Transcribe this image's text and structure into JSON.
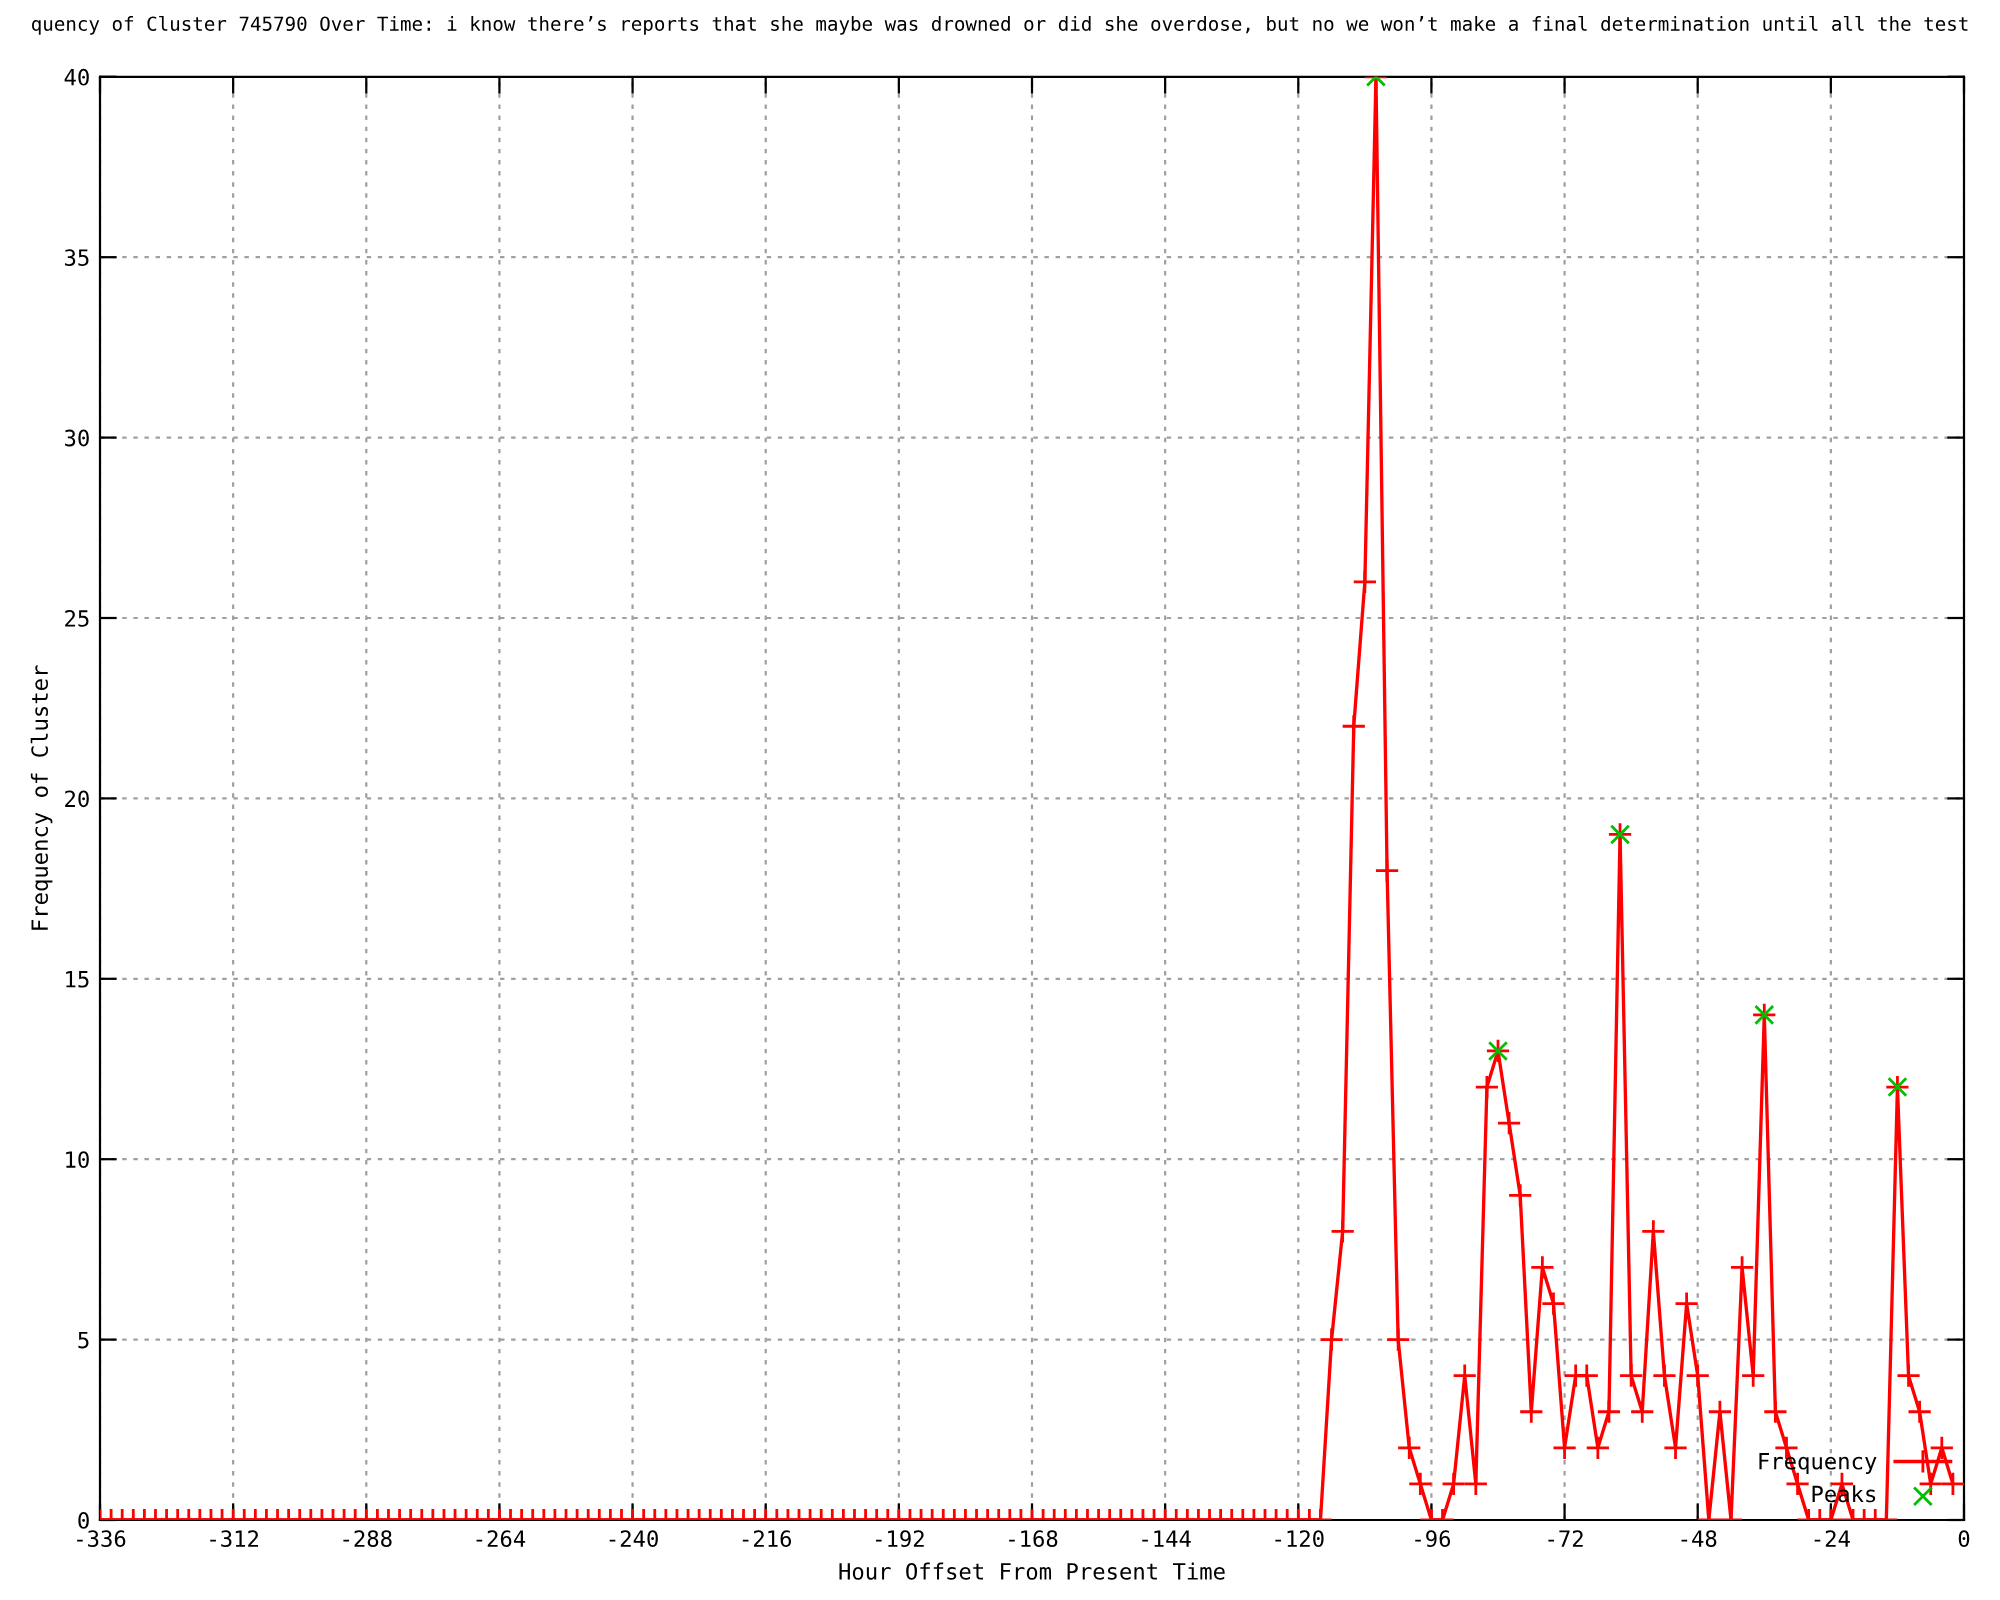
{
  "chart_data": {
    "type": "line",
    "title": "quency of Cluster 745790 Over Time: i know there’s reports that she maybe was drowned or did she overdose, but no we won’t make a final determination until all the test",
    "xlabel": "Hour Offset From Present Time",
    "ylabel": "Frequency of Cluster",
    "xlim": [
      -336,
      0
    ],
    "ylim": [
      0,
      40
    ],
    "xticks": [
      -336,
      -312,
      -288,
      -264,
      -240,
      -216,
      -192,
      -168,
      -144,
      -120,
      -96,
      -72,
      -48,
      -24,
      0
    ],
    "yticks": [
      0,
      5,
      10,
      15,
      20,
      25,
      30,
      35,
      40
    ],
    "grid": true,
    "legend": "bottom right",
    "series": [
      {
        "name": "Frequency",
        "color": "#ff0000",
        "marker": "cross",
        "line_style": "solid",
        "x": [
          -336,
          -334,
          -332,
          -330,
          -328,
          -326,
          -324,
          -322,
          -320,
          -318,
          -316,
          -314,
          -312,
          -310,
          -308,
          -306,
          -304,
          -302,
          -300,
          -298,
          -296,
          -294,
          -292,
          -290,
          -288,
          -286,
          -284,
          -282,
          -280,
          -278,
          -276,
          -274,
          -272,
          -270,
          -268,
          -266,
          -264,
          -262,
          -260,
          -258,
          -256,
          -254,
          -252,
          -250,
          -248,
          -246,
          -244,
          -242,
          -240,
          -238,
          -236,
          -234,
          -232,
          -230,
          -228,
          -226,
          -224,
          -222,
          -220,
          -218,
          -216,
          -214,
          -212,
          -210,
          -208,
          -206,
          -204,
          -202,
          -200,
          -198,
          -196,
          -194,
          -192,
          -190,
          -188,
          -186,
          -184,
          -182,
          -180,
          -178,
          -176,
          -174,
          -172,
          -170,
          -168,
          -166,
          -164,
          -162,
          -160,
          -158,
          -156,
          -154,
          -152,
          -150,
          -148,
          -146,
          -144,
          -142,
          -140,
          -138,
          -136,
          -134,
          -132,
          -130,
          -128,
          -126,
          -124,
          -122,
          -120,
          -118,
          -116,
          -114,
          -112,
          -110,
          -108,
          -106,
          -104,
          -102,
          -100,
          -98,
          -96,
          -94,
          -92,
          -90,
          -88,
          -86,
          -84,
          -82,
          -80,
          -78,
          -76,
          -74,
          -72,
          -70,
          -68,
          -66,
          -64,
          -62,
          -60,
          -58,
          -56,
          -54,
          -52,
          -50,
          -48,
          -46,
          -44,
          -42,
          -40,
          -38,
          -36,
          -34,
          -32,
          -30,
          -28,
          -26,
          -24,
          -22,
          -20,
          -18,
          -16,
          -14,
          -12,
          -10,
          -8,
          -6,
          -4,
          -2
        ],
        "values": [
          0,
          0,
          0,
          0,
          0,
          0,
          0,
          0,
          0,
          0,
          0,
          0,
          0,
          0,
          0,
          0,
          0,
          0,
          0,
          0,
          0,
          0,
          0,
          0,
          0,
          0,
          0,
          0,
          0,
          0,
          0,
          0,
          0,
          0,
          0,
          0,
          0,
          0,
          0,
          0,
          0,
          0,
          0,
          0,
          0,
          0,
          0,
          0,
          0,
          0,
          0,
          0,
          0,
          0,
          0,
          0,
          0,
          0,
          0,
          0,
          0,
          0,
          0,
          0,
          0,
          0,
          0,
          0,
          0,
          0,
          0,
          0,
          0,
          0,
          0,
          0,
          0,
          0,
          0,
          0,
          0,
          0,
          0,
          0,
          0,
          0,
          0,
          0,
          0,
          0,
          0,
          0,
          0,
          0,
          0,
          0,
          0,
          0,
          0,
          0,
          0,
          0,
          0,
          0,
          0,
          0,
          0,
          0,
          0,
          0,
          0,
          5,
          8,
          22,
          26,
          40,
          18,
          5,
          2,
          1,
          0,
          0,
          1,
          4,
          1,
          12,
          13,
          11,
          9,
          3,
          7,
          6,
          2,
          4,
          4,
          2,
          3,
          19,
          4,
          3,
          8,
          4,
          2,
          6,
          4,
          0,
          3,
          0,
          7,
          4,
          14,
          3,
          2,
          1,
          0,
          0,
          0,
          1,
          0,
          0,
          0,
          0,
          12,
          4,
          3,
          1,
          2,
          1
        ]
      },
      {
        "name": "Peaks",
        "type": "scatter",
        "color": "#00c000",
        "marker": "x",
        "x": [
          -106,
          -84,
          -62,
          -36,
          -12
        ],
        "values": [
          40,
          13,
          19,
          14,
          12
        ]
      }
    ]
  }
}
